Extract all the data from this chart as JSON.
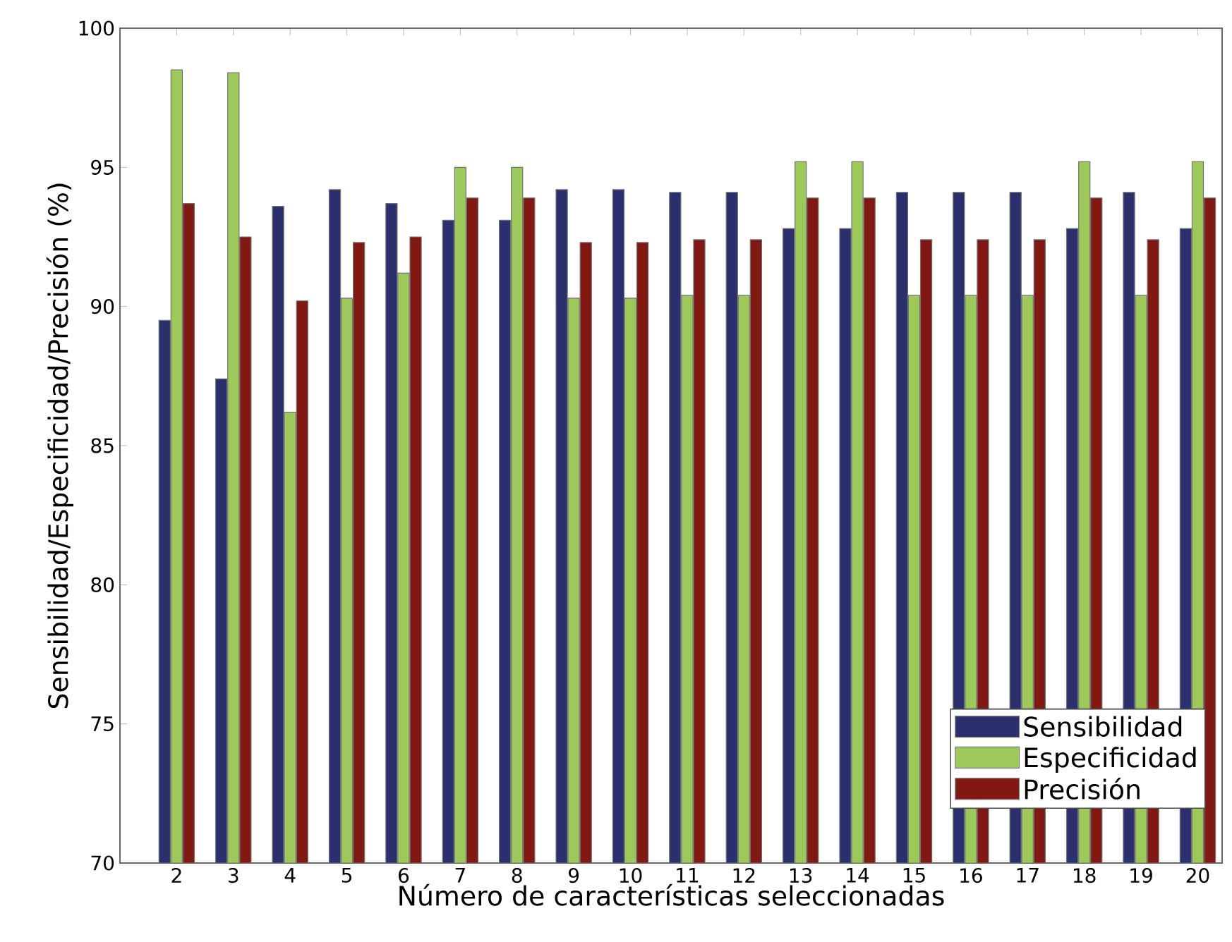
{
  "chart_data": {
    "type": "bar",
    "xlabel": "Número de características seleccionadas",
    "ylabel": "Sensibilidad/Especificidad/Precisión (%)",
    "categories": [
      "2",
      "3",
      "4",
      "5",
      "6",
      "7",
      "8",
      "9",
      "10",
      "11",
      "12",
      "13",
      "14",
      "15",
      "16",
      "17",
      "18",
      "19",
      "20"
    ],
    "series": [
      {
        "name": "Sensibilidad",
        "color": "#2a2f6e",
        "values": [
          89.5,
          87.4,
          93.6,
          94.2,
          93.7,
          93.1,
          93.1,
          94.2,
          94.2,
          94.1,
          94.1,
          92.8,
          92.8,
          94.1,
          94.1,
          94.1,
          92.8,
          94.1,
          92.8
        ]
      },
      {
        "name": "Especificidad",
        "color": "#9dc85a",
        "values": [
          98.5,
          98.4,
          86.2,
          90.3,
          91.2,
          95.0,
          95.0,
          90.3,
          90.3,
          90.4,
          90.4,
          95.2,
          95.2,
          90.4,
          90.4,
          90.4,
          95.2,
          90.4,
          95.2
        ]
      },
      {
        "name": "Precisión",
        "color": "#821812",
        "values": [
          93.7,
          92.5,
          90.2,
          92.3,
          92.5,
          93.9,
          93.9,
          92.3,
          92.3,
          92.4,
          92.4,
          93.9,
          93.9,
          92.4,
          92.4,
          92.4,
          93.9,
          92.4,
          93.9
        ]
      }
    ],
    "ylim": [
      70,
      100
    ],
    "yticks": [
      70,
      75,
      80,
      85,
      90,
      95,
      100
    ],
    "grid": false,
    "legend": "bottom right"
  }
}
